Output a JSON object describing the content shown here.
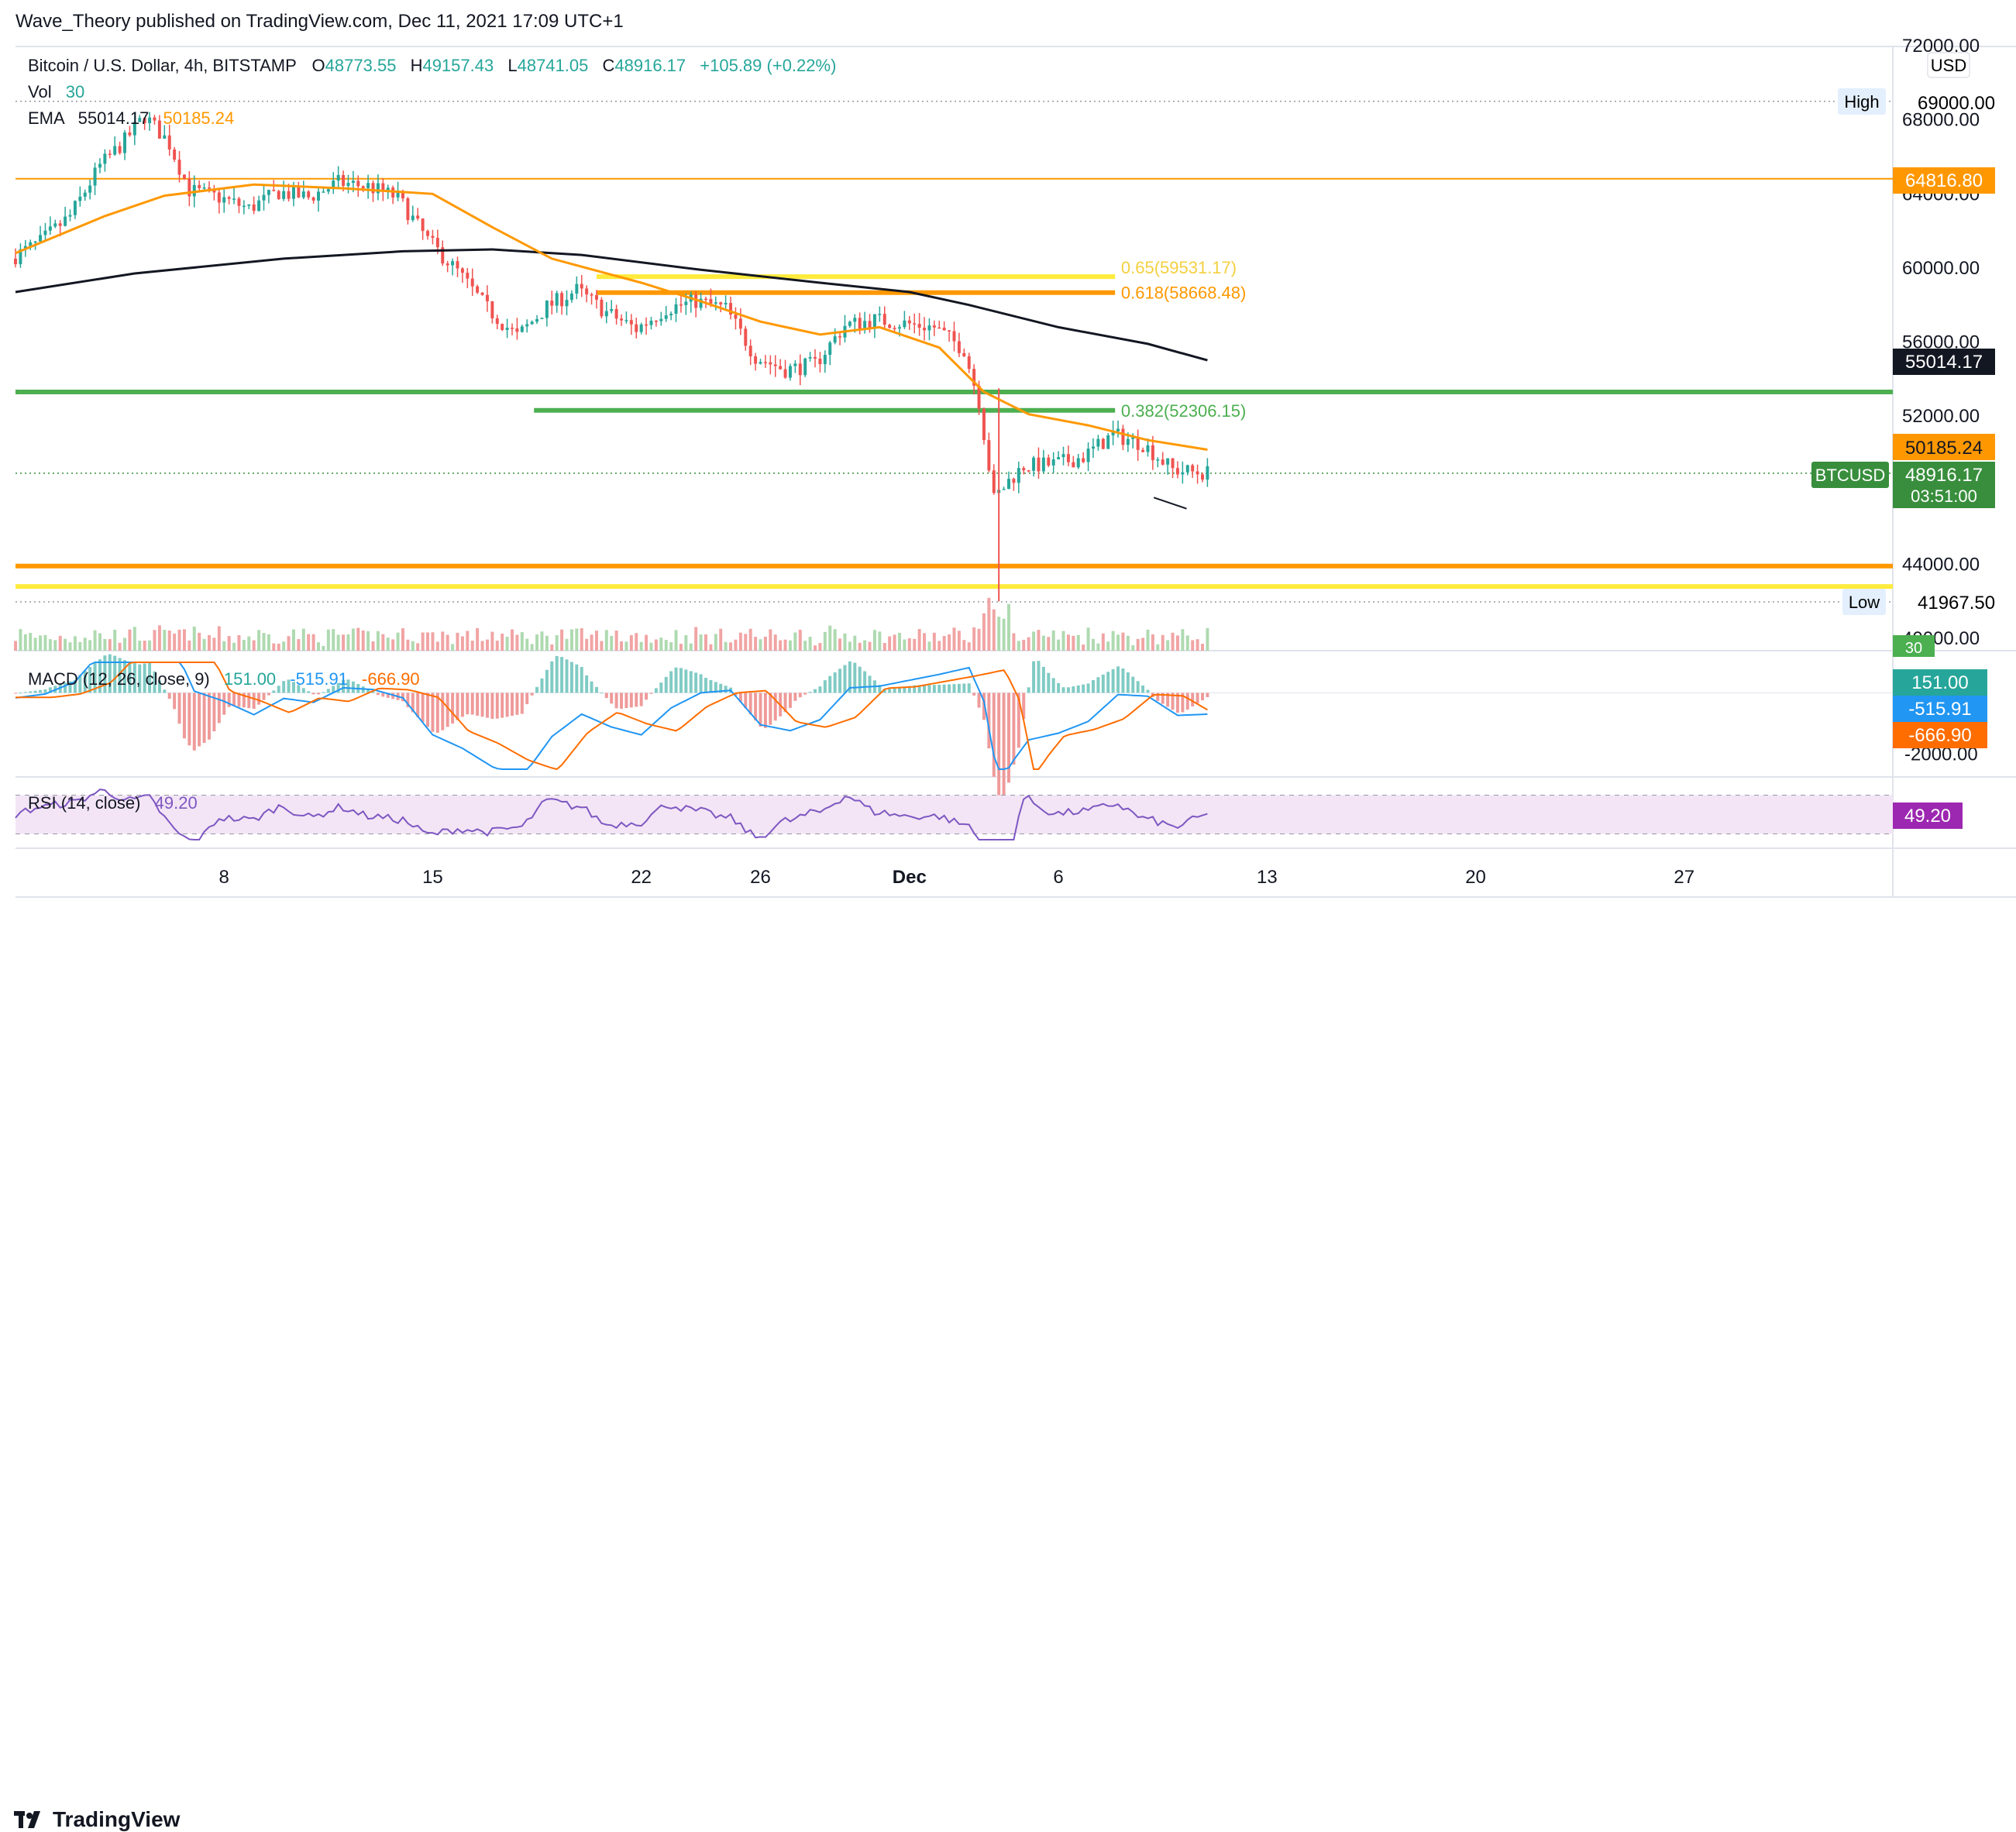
{
  "header": {
    "published": "Wave_Theory published on TradingView.com, Dec 11, 2021 17:09 UTC+1"
  },
  "footer": {
    "brand": "TradingView"
  },
  "chart_data": {
    "type": "candlestick",
    "symbol": "Bitcoin / U.S. Dollar, 4h, BITSTAMP",
    "ohlc": {
      "o_label": "O",
      "o": "48773.55",
      "h_label": "H",
      "h": "49157.43",
      "l_label": "L",
      "l": "48741.05",
      "c_label": "C",
      "c": "48916.17",
      "change": "+105.89 (+0.22%)"
    },
    "vol_label": "Vol",
    "vol_value": "30",
    "ema_label": "EMA",
    "ema_200": "55014.17",
    "ema_50": "50185.24",
    "currency": "USD",
    "price_axis": {
      "range": [
        40000,
        72000
      ],
      "ticks": [
        "72000.00",
        "68000.00",
        "64000.00",
        "60000.00",
        "56000.00",
        "52000.00",
        "44000.00",
        "40000.00"
      ],
      "tick_values": [
        72000,
        68000,
        64000,
        60000,
        56000,
        52000,
        44000,
        40000
      ]
    },
    "time_axis": {
      "labels": [
        "8",
        "15",
        "22",
        "26",
        "Dec",
        "6",
        "13",
        "20",
        "27"
      ],
      "label_days": [
        8,
        15,
        22,
        26,
        31,
        36,
        43,
        50,
        57
      ],
      "note_days": "days are counted from Nov 0 (Dec 1 = 31)"
    },
    "badges": {
      "high": {
        "label": "High",
        "value": "69000.00",
        "price": 69000
      },
      "low": {
        "label": "Low",
        "value": "41967.50",
        "price": 41967.5
      },
      "resistance": {
        "value": "64816.80",
        "price": 64816.8
      },
      "ema200": {
        "value": "55014.17",
        "price": 55014.17
      },
      "ema50": {
        "value": "50185.24",
        "price": 50185.24
      },
      "last": {
        "symbol": "BTCUSD",
        "value": "48916.17",
        "countdown": "03:51:00",
        "price": 48916.17
      },
      "vol": {
        "value": "30"
      }
    },
    "levels": [
      {
        "name": "orange-resistance",
        "price": 64816.8,
        "color": "#ff9800",
        "width": 2
      },
      {
        "name": "green-support-top",
        "price": 53300,
        "color": "#4caf50",
        "width": 6
      },
      {
        "name": "orange-support",
        "price": 43900,
        "color": "#ff9800",
        "width": 6
      },
      {
        "name": "yellow-support",
        "price": 42800,
        "color": "#ffeb3b",
        "width": 6
      }
    ],
    "fib": [
      {
        "label": "0.65(59531.17)",
        "price": 59531.17,
        "color": "#ffeb3b",
        "label_color": "#f4d03f"
      },
      {
        "label": "0.618(58668.48)",
        "price": 58668.48,
        "color": "#ff9800",
        "label_color": "#ff9800"
      },
      {
        "label": "0.382(52306.15)",
        "price": 52306.15,
        "color": "#4caf50",
        "label_color": "#4caf50"
      }
    ],
    "ema200_path": [
      [
        1,
        58700
      ],
      [
        5,
        59700
      ],
      [
        10,
        60500
      ],
      [
        14,
        60900
      ],
      [
        17,
        61000
      ],
      [
        20,
        60700
      ],
      [
        24,
        59900
      ],
      [
        28,
        59200
      ],
      [
        31,
        58700
      ],
      [
        33,
        58000
      ],
      [
        36,
        56800
      ],
      [
        39,
        55900
      ],
      [
        41,
        55014
      ]
    ],
    "ema50_path": [
      [
        1,
        60800
      ],
      [
        4,
        62800
      ],
      [
        6,
        63900
      ],
      [
        9,
        64500
      ],
      [
        12,
        64300
      ],
      [
        15,
        64000
      ],
      [
        17,
        62200
      ],
      [
        19,
        60500
      ],
      [
        22,
        59200
      ],
      [
        24,
        58200
      ],
      [
        26,
        57100
      ],
      [
        28,
        56400
      ],
      [
        30,
        56800
      ],
      [
        32,
        55700
      ],
      [
        33.5,
        53300
      ],
      [
        35,
        52100
      ],
      [
        37,
        51500
      ],
      [
        39,
        50700
      ],
      [
        41,
        50185
      ]
    ],
    "price_path": [
      [
        1,
        60500
      ],
      [
        2,
        61400
      ],
      [
        3,
        62800
      ],
      [
        4,
        65500
      ],
      [
        4.8,
        66800
      ],
      [
        5.5,
        68200
      ],
      [
        6.3,
        66800
      ],
      [
        7,
        64200
      ],
      [
        8,
        63800
      ],
      [
        9,
        63200
      ],
      [
        10,
        64100
      ],
      [
        11,
        63800
      ],
      [
        12,
        64600
      ],
      [
        13,
        64400
      ],
      [
        14,
        63800
      ],
      [
        15,
        61500
      ],
      [
        16,
        59800
      ],
      [
        17,
        57800
      ],
      [
        18,
        56300
      ],
      [
        19,
        57900
      ],
      [
        20,
        58800
      ],
      [
        21,
        57600
      ],
      [
        22,
        56700
      ],
      [
        23,
        57800
      ],
      [
        24,
        58200
      ],
      [
        25,
        57800
      ],
      [
        26,
        55200
      ],
      [
        27,
        54500
      ],
      [
        28,
        54800
      ],
      [
        29,
        56900
      ],
      [
        30,
        57200
      ],
      [
        31,
        57000
      ],
      [
        32,
        56800
      ],
      [
        33,
        55600
      ],
      [
        33.5,
        52800
      ],
      [
        34,
        47500
      ],
      [
        34.5,
        48500
      ],
      [
        35,
        49300
      ],
      [
        36,
        49400
      ],
      [
        37,
        49800
      ],
      [
        38,
        51000
      ],
      [
        39,
        50500
      ],
      [
        40,
        49100
      ],
      [
        41,
        48916
      ]
    ],
    "macd": {
      "label": "MACD (12, 26, close, 9)",
      "hist_value": "151.00",
      "macd_value": "-515.91",
      "signal_value": "-666.90",
      "range": [
        -2500,
        1000
      ],
      "ticks": [
        "-2000.00"
      ],
      "tick_values": [
        -2000
      ]
    },
    "rsi": {
      "label": "RSI (14, close)",
      "value": "49.20",
      "range": [
        20,
        80
      ],
      "band": [
        30,
        70
      ]
    },
    "colors": {
      "up": "#26a69a",
      "down": "#ef5350",
      "ema50": "#ff9800",
      "ema200": "#131722",
      "macd": "#2196f3",
      "signal": "#ff6d00",
      "rsi": "#7e57c2",
      "accent_green": "#388e3c"
    }
  }
}
